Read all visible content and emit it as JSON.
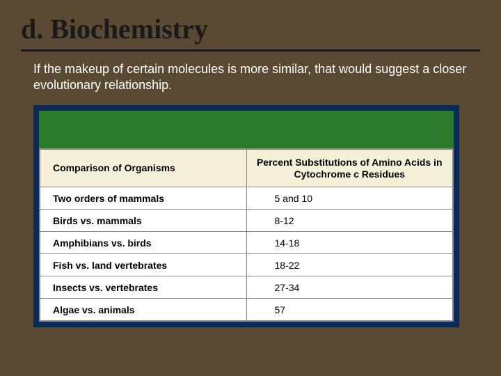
{
  "title": "d. Biochemistry",
  "subtitle": "If the makeup of certain molecules is more similar, that would suggest a  closer  evolutionary relationship.",
  "table": {
    "type": "table",
    "outer_border_color": "#0a2a5a",
    "green_band_color": "#2a7a2a",
    "header_bg": "#f5f0d8",
    "row_bg": "#ffffff",
    "border_color": "#888888",
    "text_color": "#000000",
    "header_fontsize": 14,
    "cell_fontsize": 14,
    "columns": [
      {
        "label": "Comparison of Organisms",
        "width_pct": 50,
        "align": "left"
      },
      {
        "label": "Percent Substitutions of Amino Acids in Cytochrome c Residues",
        "width_pct": 50,
        "align": "center"
      }
    ],
    "rows": [
      {
        "label": "Two orders of mammals",
        "value": "5 and 10"
      },
      {
        "label": "Birds vs. mammals",
        "value": "8-12"
      },
      {
        "label": "Amphibians vs. birds",
        "value": "14-18"
      },
      {
        "label": "Fish vs. land vertebrates",
        "value": "18-22"
      },
      {
        "label": "Insects vs. vertebrates",
        "value": "27-34"
      },
      {
        "label": "Algae vs. animals",
        "value": "57"
      }
    ]
  },
  "colors": {
    "background": "#5a4a33",
    "title_color": "#1a1a1a",
    "underline_color": "#1a1a1a",
    "subtitle_color": "#ffffff"
  },
  "typography": {
    "title_font": "Georgia, serif",
    "title_size_pt": 40,
    "title_weight": "bold",
    "subtitle_font": "Arial, sans-serif",
    "subtitle_size_pt": 18
  }
}
